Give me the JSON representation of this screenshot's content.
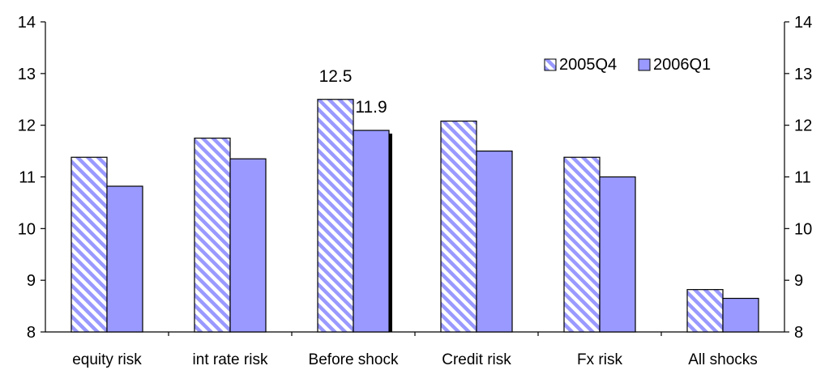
{
  "chart_data": {
    "type": "bar",
    "categories": [
      "equity risk",
      "int rate risk",
      "Before shock",
      "Credit risk",
      "Fx risk",
      "All shocks"
    ],
    "series": [
      {
        "name": "2005Q4",
        "values": [
          11.38,
          11.75,
          12.5,
          12.08,
          11.38,
          8.82
        ],
        "color": "#9999ff",
        "pattern": "diagonal-hatch"
      },
      {
        "name": "2006Q1",
        "values": [
          10.82,
          11.35,
          11.9,
          11.5,
          11.0,
          8.65
        ],
        "color": "#9999ff",
        "pattern": "solid"
      }
    ],
    "data_labels": [
      {
        "series": 0,
        "category": 2,
        "text": "12.5"
      },
      {
        "series": 1,
        "category": 2,
        "text": "11.9"
      }
    ],
    "ylim": [
      8,
      14
    ],
    "yticks": [
      "8",
      "9",
      "10",
      "11",
      "12",
      "13",
      "14"
    ],
    "secondary_yaxis": true,
    "legend": {
      "position": "top-right",
      "entries": [
        "2005Q4",
        "2006Q1"
      ]
    },
    "grid": false,
    "title": "",
    "xlabel": "",
    "ylabel": ""
  }
}
